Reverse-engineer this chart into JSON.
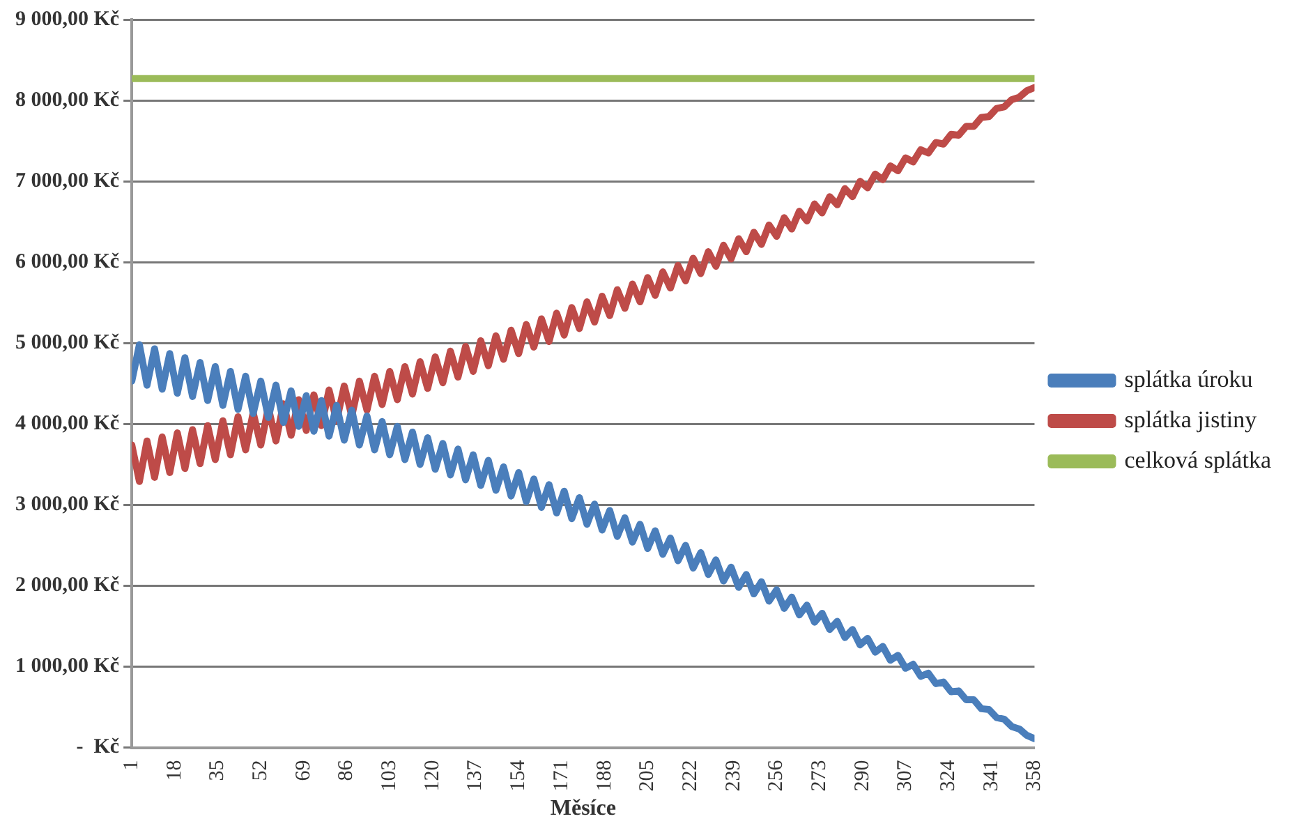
{
  "chart_data": {
    "type": "line",
    "xlabel": "Měsíce",
    "x": [
      1,
      4,
      7,
      10,
      13,
      16,
      19,
      22,
      25,
      28,
      31,
      34,
      37,
      40,
      43,
      46,
      49,
      52,
      55,
      58,
      61,
      64,
      67,
      70,
      73,
      76,
      79,
      82,
      85,
      88,
      91,
      94,
      97,
      100,
      103,
      106,
      109,
      112,
      115,
      118,
      121,
      124,
      127,
      130,
      133,
      136,
      139,
      142,
      145,
      148,
      151,
      154,
      157,
      160,
      163,
      166,
      169,
      172,
      175,
      178,
      181,
      184,
      187,
      190,
      193,
      196,
      199,
      202,
      205,
      208,
      211,
      214,
      217,
      220,
      223,
      226,
      229,
      232,
      235,
      238,
      241,
      244,
      247,
      250,
      253,
      256,
      259,
      262,
      265,
      268,
      271,
      274,
      277,
      280,
      283,
      286,
      289,
      292,
      295,
      298,
      301,
      304,
      307,
      310,
      313,
      316,
      319,
      322,
      325,
      328,
      331,
      334,
      337,
      340,
      343,
      346,
      349,
      352,
      355,
      358
    ],
    "xlim": [
      1,
      358
    ],
    "xticks": [
      1,
      18,
      35,
      52,
      69,
      86,
      103,
      120,
      137,
      154,
      171,
      188,
      205,
      222,
      239,
      256,
      273,
      290,
      307,
      324,
      341,
      358
    ],
    "ylim": [
      0,
      9000
    ],
    "yticks": [
      {
        "value": 0,
        "label": "-  Kč"
      },
      {
        "value": 1000,
        "label": "1 000,00 Kč"
      },
      {
        "value": 2000,
        "label": "2 000,00 Kč"
      },
      {
        "value": 3000,
        "label": "3 000,00 Kč"
      },
      {
        "value": 4000,
        "label": "4 000,00 Kč"
      },
      {
        "value": 5000,
        "label": "5 000,00 Kč"
      },
      {
        "value": 6000,
        "label": "6 000,00 Kč"
      },
      {
        "value": 7000,
        "label": "7 000,00 Kč"
      },
      {
        "value": 8000,
        "label": "8 000,00 Kč"
      },
      {
        "value": 9000,
        "label": "9 000,00 Kč"
      }
    ],
    "grid": "y",
    "legend": "right",
    "marker": "none",
    "line_style": "solid",
    "series": [
      {
        "name": "splátka úroku",
        "color": "#4a7ebb",
        "values": [
          4530,
          4980,
          4480,
          4930,
          4430,
          4870,
          4380,
          4820,
          4340,
          4760,
          4290,
          4710,
          4230,
          4650,
          4180,
          4590,
          4130,
          4530,
          4080,
          4480,
          4020,
          4410,
          3970,
          4350,
          3910,
          4290,
          3850,
          4230,
          3800,
          4170,
          3740,
          4100,
          3680,
          4030,
          3620,
          3970,
          3560,
          3900,
          3500,
          3830,
          3440,
          3760,
          3370,
          3690,
          3310,
          3620,
          3240,
          3550,
          3180,
          3470,
          3110,
          3400,
          3040,
          3320,
          2970,
          3250,
          2900,
          3170,
          2830,
          3090,
          2760,
          3010,
          2690,
          2930,
          2610,
          2840,
          2540,
          2760,
          2460,
          2680,
          2390,
          2590,
          2310,
          2500,
          2220,
          2410,
          2140,
          2320,
          2060,
          2230,
          1980,
          2140,
          1900,
          2050,
          1810,
          1950,
          1720,
          1860,
          1640,
          1760,
          1550,
          1660,
          1460,
          1560,
          1360,
          1460,
          1270,
          1350,
          1180,
          1250,
          1080,
          1140,
          980,
          1030,
          880,
          920,
          790,
          810,
          690,
          700,
          590,
          590,
          480,
          470,
          370,
          350,
          260,
          230,
          150,
          110
        ]
      },
      {
        "name": "splátka jistiny",
        "color": "#be4b48",
        "values": [
          3740,
          3290,
          3790,
          3340,
          3840,
          3400,
          3890,
          3450,
          3930,
          3510,
          3980,
          3560,
          4040,
          3620,
          4090,
          3680,
          4140,
          3740,
          4200,
          3790,
          4250,
          3860,
          4300,
          3920,
          4360,
          3980,
          4420,
          4040,
          4470,
          4100,
          4530,
          4170,
          4590,
          4240,
          4650,
          4300,
          4710,
          4370,
          4770,
          4440,
          4830,
          4510,
          4900,
          4580,
          4960,
          4650,
          5030,
          4720,
          5090,
          4800,
          5160,
          4870,
          5230,
          4950,
          5300,
          5020,
          5370,
          5100,
          5440,
          5180,
          5510,
          5260,
          5580,
          5340,
          5660,
          5430,
          5730,
          5510,
          5810,
          5590,
          5880,
          5680,
          5960,
          5770,
          6050,
          5860,
          6130,
          5950,
          6210,
          6040,
          6290,
          6130,
          6370,
          6220,
          6460,
          6320,
          6550,
          6410,
          6630,
          6510,
          6720,
          6610,
          6810,
          6710,
          6910,
          6810,
          7000,
          6920,
          7090,
          7020,
          7190,
          7130,
          7290,
          7240,
          7390,
          7350,
          7480,
          7460,
          7580,
          7570,
          7680,
          7680,
          7790,
          7800,
          7900,
          7920,
          8010,
          8040,
          8120,
          8160
        ]
      },
      {
        "name": "celková splátka",
        "color": "#9bbb59",
        "values": [
          8270,
          8270,
          8270,
          8270,
          8270,
          8270,
          8270,
          8270,
          8270,
          8270,
          8270,
          8270,
          8270,
          8270,
          8270,
          8270,
          8270,
          8270,
          8270,
          8270,
          8270,
          8270,
          8270,
          8270,
          8270,
          8270,
          8270,
          8270,
          8270,
          8270,
          8270,
          8270,
          8270,
          8270,
          8270,
          8270,
          8270,
          8270,
          8270,
          8270,
          8270,
          8270,
          8270,
          8270,
          8270,
          8270,
          8270,
          8270,
          8270,
          8270,
          8270,
          8270,
          8270,
          8270,
          8270,
          8270,
          8270,
          8270,
          8270,
          8270,
          8270,
          8270,
          8270,
          8270,
          8270,
          8270,
          8270,
          8270,
          8270,
          8270,
          8270,
          8270,
          8270,
          8270,
          8270,
          8270,
          8270,
          8270,
          8270,
          8270,
          8270,
          8270,
          8270,
          8270,
          8270,
          8270,
          8270,
          8270,
          8270,
          8270,
          8270,
          8270,
          8270,
          8270,
          8270,
          8270,
          8270,
          8270,
          8270,
          8270,
          8270,
          8270,
          8270,
          8270,
          8270,
          8270,
          8270,
          8270,
          8270,
          8270,
          8270,
          8270,
          8270,
          8270,
          8270,
          8270,
          8270,
          8270,
          8270,
          8270
        ]
      }
    ]
  }
}
